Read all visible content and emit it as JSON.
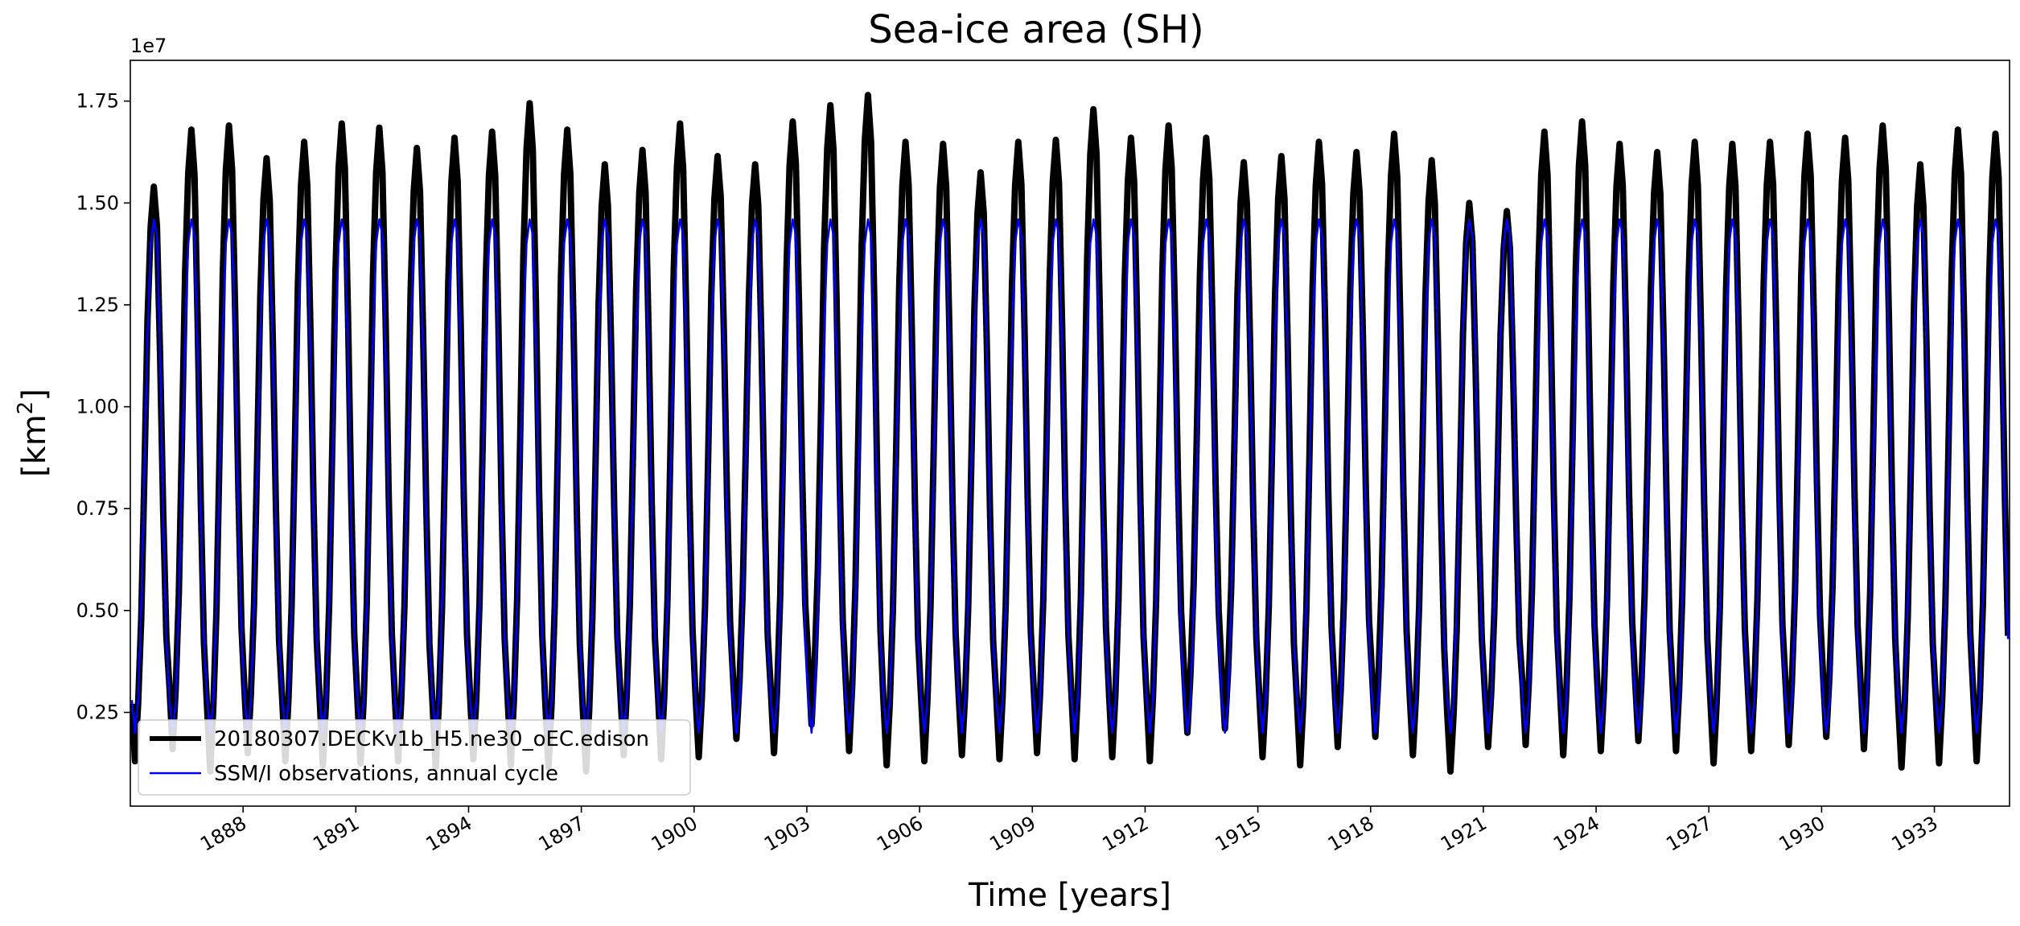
{
  "chart_data": {
    "type": "line",
    "title": "Sea-ice area (SH)",
    "xlabel": "Time [years]",
    "ylabel_main": "[km",
    "ylabel_sup": "2",
    "ylabel_close": "]",
    "y_offset_label": "1e7",
    "xlim": [
      1885.0,
      1935.0
    ],
    "ylim": [
      200000,
      18500000
    ],
    "xticks": [
      1888,
      1891,
      1894,
      1897,
      1900,
      1903,
      1906,
      1909,
      1912,
      1915,
      1918,
      1921,
      1924,
      1927,
      1930,
      1933
    ],
    "xtick_labels": [
      "1888",
      "1891",
      "1894",
      "1897",
      "1900",
      "1903",
      "1906",
      "1909",
      "1912",
      "1915",
      "1918",
      "1921",
      "1924",
      "1927",
      "1930",
      "1933"
    ],
    "yticks": [
      2500000,
      5000000,
      7500000,
      10000000,
      12500000,
      15000000,
      17500000
    ],
    "ytick_labels": [
      "0.25",
      "0.50",
      "0.75",
      "1.00",
      "1.25",
      "1.50",
      "1.75"
    ],
    "legend_placement": "lower-left",
    "grid": false,
    "series": [
      {
        "name": "20180307.DECKv1b_H5.ne30_oEC.edison",
        "color": "#000000",
        "annual_max": [
          15400000,
          16800000,
          16900000,
          16100000,
          16500000,
          16950000,
          16850000,
          16350000,
          16600000,
          16750000,
          17450000,
          16800000,
          15950000,
          16300000,
          16950000,
          16150000,
          15950000,
          17000000,
          17400000,
          17650000,
          16500000,
          16450000,
          15750000,
          16500000,
          16550000,
          17300000,
          16600000,
          16900000,
          16600000,
          16000000,
          16150000,
          16500000,
          16250000,
          16700000,
          16050000,
          15000000,
          14800000,
          16750000,
          17000000,
          16450000,
          16250000,
          16500000,
          16450000,
          16500000,
          16700000,
          16600000,
          16900000,
          15950000,
          16800000,
          16700000
        ],
        "annual_min": [
          1300000,
          1600000,
          1050000,
          1500000,
          1300000,
          1200000,
          1250000,
          1300000,
          1150000,
          1350000,
          1200000,
          1150000,
          1050000,
          1450000,
          1350000,
          1400000,
          1850000,
          1500000,
          2200000,
          1550000,
          1200000,
          1300000,
          1450000,
          1350000,
          1500000,
          1350000,
          1400000,
          1300000,
          2000000,
          2100000,
          1400000,
          1200000,
          1650000,
          1900000,
          1450000,
          1050000,
          1650000,
          1700000,
          1450000,
          1550000,
          1800000,
          1550000,
          1250000,
          1550000,
          1700000,
          1900000,
          1600000,
          1150000,
          1250000,
          1300000
        ]
      },
      {
        "name": "SSM/I observations, annual cycle",
        "color": "#0000ff",
        "monthly": [
          2800000,
          2000000,
          2800000,
          5200000,
          8500000,
          11800000,
          14000000,
          14600000,
          14200000,
          11300000,
          7200000,
          4300000
        ]
      }
    ]
  }
}
